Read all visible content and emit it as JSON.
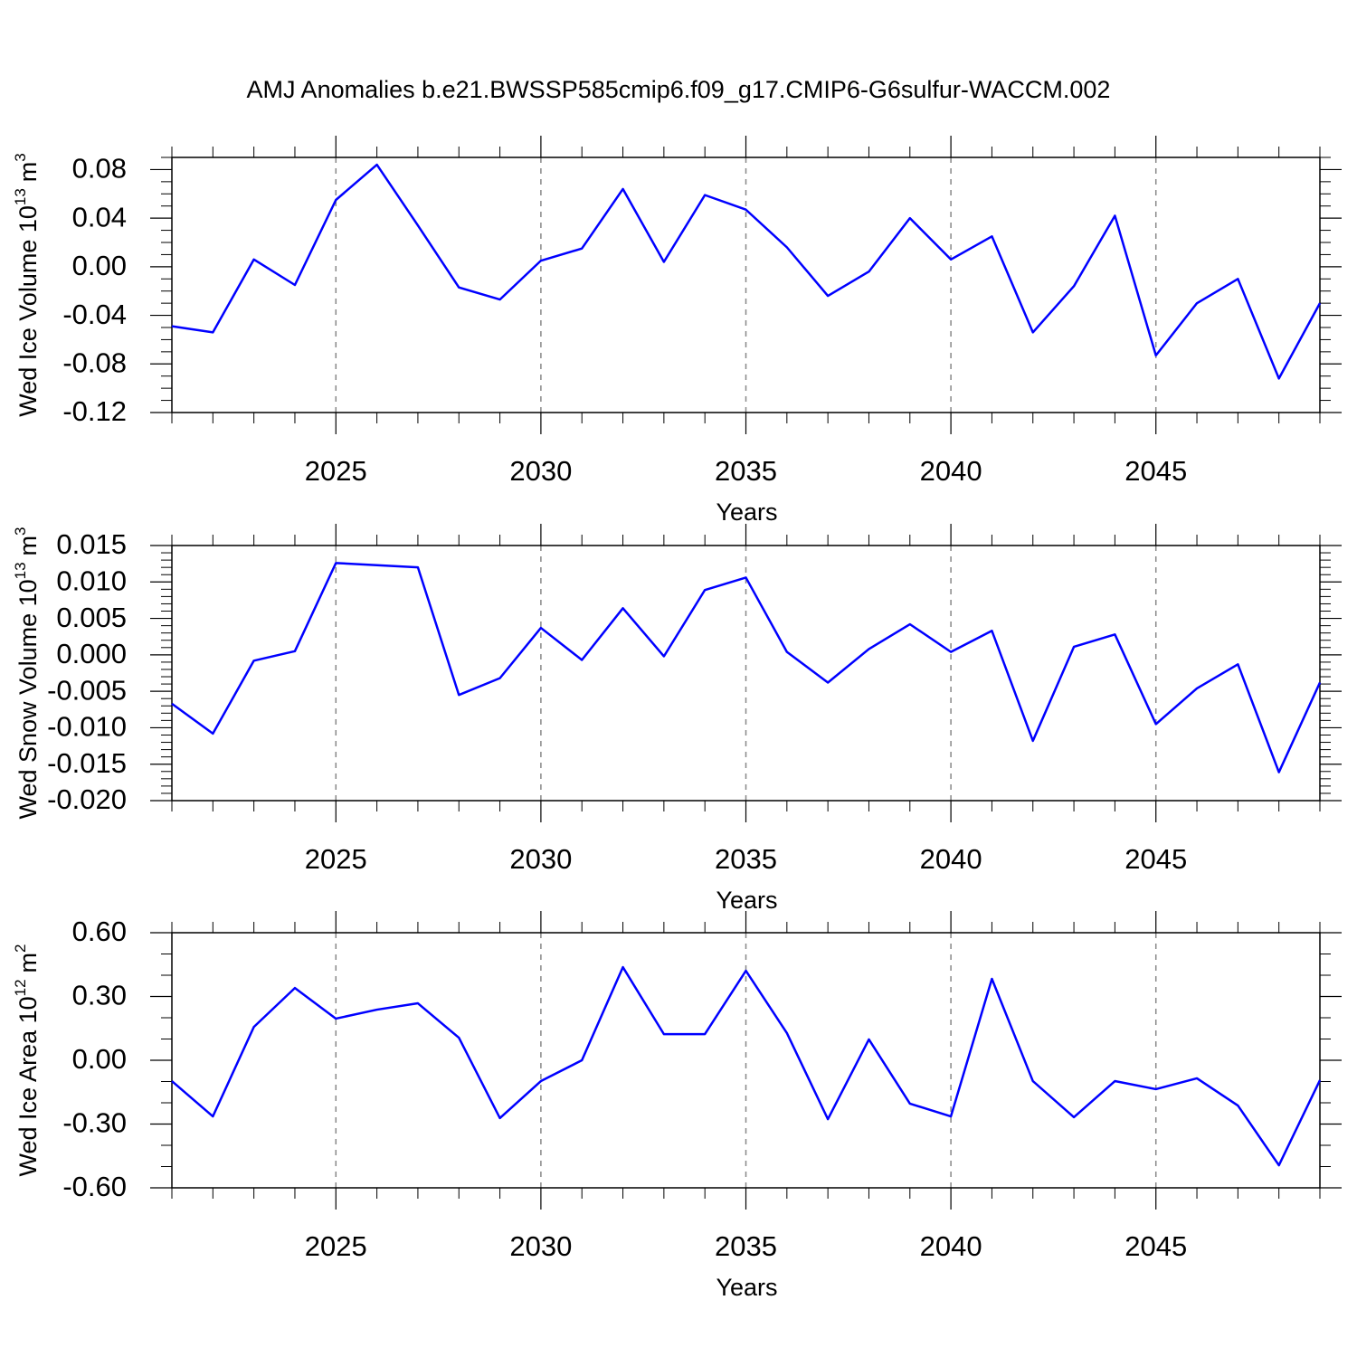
{
  "title": "AMJ Anomalies b.e21.BWSSP585cmip6.f09_g17.CMIP6-G6sulfur-WACCM.002",
  "chart_data": [
    {
      "type": "line",
      "ylabel_parts": [
        "Wed Ice Volume 10",
        "13",
        "m",
        "3"
      ],
      "xlabel": "Years",
      "color": "#0000ff",
      "x": [
        2021,
        2022,
        2023,
        2024,
        2025,
        2026,
        2027,
        2028,
        2029,
        2030,
        2031,
        2032,
        2033,
        2034,
        2035,
        2036,
        2037,
        2038,
        2039,
        2040,
        2041,
        2042,
        2043,
        2044,
        2045,
        2046,
        2047,
        2048,
        2049
      ],
      "values": [
        -0.049,
        -0.054,
        0.006,
        -0.015,
        0.055,
        0.084,
        0.034,
        -0.017,
        -0.027,
        0.005,
        0.015,
        0.064,
        0.004,
        0.059,
        0.047,
        0.016,
        -0.024,
        -0.004,
        0.04,
        0.006,
        0.025,
        -0.054,
        -0.016,
        0.042,
        -0.073,
        -0.03,
        -0.01,
        -0.092,
        -0.03
      ],
      "xlim": [
        2021,
        2049
      ],
      "xticks": [
        2025,
        2030,
        2035,
        2040,
        2045
      ],
      "xminorticks": [
        2021,
        2022,
        2023,
        2024,
        2026,
        2027,
        2028,
        2029,
        2031,
        2032,
        2033,
        2034,
        2036,
        2037,
        2038,
        2039,
        2041,
        2042,
        2043,
        2044,
        2046,
        2047,
        2048,
        2049
      ],
      "ylim": [
        -0.12,
        0.09
      ],
      "yticks": [
        0.08,
        0.04,
        {
          "value": 0,
          "label": "0.00"
        },
        -0.04,
        -0.08,
        -0.12
      ],
      "yminorticks": [
        0.09,
        0.07,
        0.06,
        0.05,
        0.03,
        0.02,
        0.01,
        -0.01,
        -0.02,
        -0.03,
        -0.05,
        -0.06,
        -0.07,
        -0.09,
        -0.1,
        -0.11
      ],
      "xgrid": true
    },
    {
      "type": "line",
      "ylabel_parts": [
        "Wed Snow Volume 10",
        "13",
        "m",
        "3"
      ],
      "xlabel": "Years",
      "color": "#0000ff",
      "x": [
        2021,
        2022,
        2023,
        2024,
        2025,
        2026,
        2027,
        2028,
        2029,
        2030,
        2031,
        2032,
        2033,
        2034,
        2035,
        2036,
        2037,
        2038,
        2039,
        2040,
        2041,
        2042,
        2043,
        2044,
        2045,
        2046,
        2047,
        2048,
        2049
      ],
      "values": [
        -0.0067,
        -0.0108,
        -0.0008,
        0.0005,
        0.0126,
        0.0123,
        0.012,
        -0.0055,
        -0.0032,
        0.0037,
        -0.0007,
        0.0064,
        -0.0002,
        0.0089,
        0.0106,
        0.0004,
        -0.0038,
        0.0008,
        0.0042,
        0.0004,
        0.0033,
        -0.0118,
        0.0011,
        0.0028,
        -0.0095,
        -0.0046,
        -0.0013,
        -0.0161,
        -0.0038
      ],
      "xlim": [
        2021,
        2049
      ],
      "xticks": [
        2025,
        2030,
        2035,
        2040,
        2045
      ],
      "xminorticks": [
        2021,
        2022,
        2023,
        2024,
        2026,
        2027,
        2028,
        2029,
        2031,
        2032,
        2033,
        2034,
        2036,
        2037,
        2038,
        2039,
        2041,
        2042,
        2043,
        2044,
        2046,
        2047,
        2048,
        2049
      ],
      "ylim": [
        -0.02,
        0.015
      ],
      "yticks": [
        0.015,
        {
          "value": 0.01,
          "label": "0.010"
        },
        0.005,
        {
          "value": 0,
          "label": "0.000"
        },
        -0.005,
        {
          "value": -0.01,
          "label": "-0.010"
        },
        -0.015,
        {
          "value": -0.02,
          "label": "-0.020"
        }
      ],
      "yminorticks": [
        0.014,
        0.013,
        0.012,
        0.011,
        0.009,
        0.008,
        0.007,
        0.006,
        0.004,
        0.003,
        0.002,
        0.001,
        -0.001,
        -0.002,
        -0.003,
        -0.004,
        -0.006,
        -0.007,
        -0.008,
        -0.009,
        -0.011,
        -0.012,
        -0.013,
        -0.014,
        -0.016,
        -0.017,
        -0.018,
        -0.019
      ],
      "xgrid": true
    },
    {
      "type": "line",
      "ylabel_parts": [
        "Wed Ice Area 10",
        "12",
        "m",
        "2"
      ],
      "xlabel": "Years",
      "color": "#0000ff",
      "x": [
        2021,
        2022,
        2023,
        2024,
        2025,
        2026,
        2027,
        2028,
        2029,
        2030,
        2031,
        2032,
        2033,
        2034,
        2035,
        2036,
        2037,
        2038,
        2039,
        2040,
        2041,
        2042,
        2043,
        2044,
        2045,
        2046,
        2047,
        2048,
        2049
      ],
      "values": [
        -0.098,
        -0.264,
        0.157,
        0.34,
        0.196,
        0.238,
        0.268,
        0.106,
        -0.272,
        -0.098,
        0.0,
        0.438,
        0.123,
        0.123,
        0.421,
        0.128,
        -0.277,
        0.098,
        -0.204,
        -0.264,
        0.383,
        -0.098,
        -0.268,
        -0.098,
        -0.136,
        -0.085,
        -0.213,
        -0.494,
        -0.094
      ],
      "xlim": [
        2021,
        2049
      ],
      "xticks": [
        2025,
        2030,
        2035,
        2040,
        2045
      ],
      "xminorticks": [
        2021,
        2022,
        2023,
        2024,
        2026,
        2027,
        2028,
        2029,
        2031,
        2032,
        2033,
        2034,
        2036,
        2037,
        2038,
        2039,
        2041,
        2042,
        2043,
        2044,
        2046,
        2047,
        2048,
        2049
      ],
      "ylim": [
        -0.6,
        0.6
      ],
      "yticks": [
        {
          "value": 0.6,
          "label": "0.60"
        },
        {
          "value": 0.3,
          "label": "0.30"
        },
        {
          "value": 0,
          "label": "0.00"
        },
        {
          "value": -0.3,
          "label": "-0.30"
        },
        {
          "value": -0.6,
          "label": "-0.60"
        }
      ],
      "yminorticks": [
        0.5,
        0.4,
        0.2,
        0.1,
        -0.1,
        -0.2,
        -0.4,
        -0.5
      ],
      "xgrid": true
    }
  ]
}
